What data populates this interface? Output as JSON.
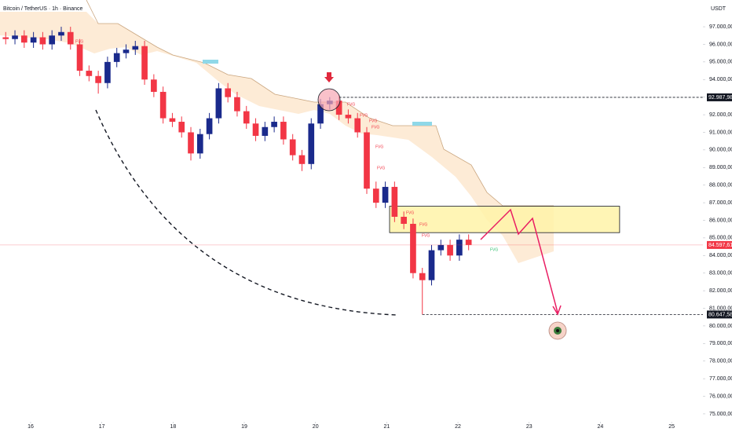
{
  "chart_data": {
    "type": "candlestick",
    "title": "Bitcoin / TetherUS · 1h · Binance",
    "y_axis_label": "USDT",
    "annotation": "FVG",
    "up_color": "#1a2a8c",
    "down_color": "#f23645",
    "x": [
      15.65,
      15.78,
      15.91,
      16.04,
      16.17,
      16.3,
      16.43,
      16.56,
      16.69,
      16.82,
      16.95,
      17.08,
      17.21,
      17.34,
      17.47,
      17.6,
      17.73,
      17.86,
      17.99,
      18.12,
      18.25,
      18.38,
      18.51,
      18.64,
      18.77,
      18.9,
      19.03,
      19.16,
      19.29,
      19.42,
      19.55,
      19.68,
      19.81,
      19.94,
      20.07,
      20.2,
      20.33,
      20.46,
      20.59,
      20.72,
      20.85,
      20.98,
      21.11,
      21.24,
      21.37,
      21.5,
      21.63,
      21.76,
      21.89,
      22.02,
      22.15
    ],
    "open": [
      96400,
      96300,
      96500,
      96100,
      96400,
      96000,
      96500,
      96700,
      96000,
      94500,
      94200,
      93800,
      95000,
      95500,
      95700,
      95900,
      94000,
      93300,
      91800,
      91600,
      91000,
      89800,
      90900,
      91800,
      93500,
      93000,
      92200,
      91500,
      90800,
      91300,
      91600,
      90600,
      89700,
      89200,
      91500,
      92600,
      92800,
      92000,
      91800,
      91000,
      87800,
      87000,
      87900,
      86200,
      85800,
      83000,
      82600,
      84300,
      84600,
      84000,
      84900
    ],
    "high": [
      96700,
      96800,
      96800,
      96700,
      96700,
      96800,
      97000,
      97000,
      96300,
      94800,
      94500,
      95300,
      95800,
      96000,
      96200,
      96200,
      94300,
      93600,
      92100,
      91900,
      91300,
      91200,
      92100,
      93800,
      93800,
      93300,
      92500,
      91800,
      91600,
      91900,
      91900,
      90900,
      90000,
      91800,
      92900,
      93000,
      93100,
      92300,
      92100,
      91300,
      88200,
      88200,
      88200,
      86500,
      86100,
      83300,
      84600,
      84900,
      84900,
      85200,
      85200
    ],
    "low": [
      96000,
      96000,
      95800,
      95800,
      95700,
      95700,
      96200,
      95700,
      94200,
      93900,
      93200,
      93500,
      94700,
      95200,
      95400,
      93700,
      93000,
      91500,
      91300,
      90700,
      89400,
      89500,
      90600,
      91500,
      92700,
      91900,
      91200,
      90500,
      90500,
      91000,
      90300,
      89400,
      88800,
      88900,
      91200,
      92300,
      91700,
      91500,
      90700,
      87500,
      86700,
      86700,
      85900,
      85500,
      82700,
      80647.58,
      82300,
      84000,
      83700,
      83700,
      84300
    ],
    "close": [
      96300,
      96500,
      96100,
      96400,
      96000,
      96500,
      96700,
      96000,
      94500,
      94200,
      93800,
      95000,
      95500,
      95700,
      95900,
      94000,
      93300,
      91800,
      91600,
      91000,
      89800,
      90900,
      91800,
      93500,
      93000,
      92200,
      91500,
      90800,
      91300,
      91600,
      90600,
      89700,
      89200,
      91500,
      92600,
      92800,
      92000,
      91800,
      91000,
      87800,
      87000,
      87900,
      86200,
      85800,
      83000,
      82600,
      84300,
      84600,
      84000,
      84900,
      84600
    ],
    "xlim": [
      15.57,
      25.44
    ],
    "xticks": [
      16,
      17,
      18,
      19,
      20,
      21,
      22,
      23,
      24,
      25
    ],
    "ylim": [
      74640,
      98520
    ],
    "yticks": [
      {
        "value": 75000,
        "label": "75.000,00"
      },
      {
        "value": 76000,
        "label": "76.000,00"
      },
      {
        "value": 77000,
        "label": "77.000,00"
      },
      {
        "value": 78000,
        "label": "78.000,00"
      },
      {
        "value": 79000,
        "label": "79.000,00"
      },
      {
        "value": 80000,
        "label": "80.000,00"
      },
      {
        "value": 81000,
        "label": "81.000,00"
      },
      {
        "value": 82000,
        "label": "82.000,00"
      },
      {
        "value": 83000,
        "label": "83.000,00"
      },
      {
        "value": 84000,
        "label": "84.000,00"
      },
      {
        "value": 85000,
        "label": "85.000,00"
      },
      {
        "value": 86000,
        "label": "86.000,00"
      },
      {
        "value": 87000,
        "label": "87.000,00"
      },
      {
        "value": 88000,
        "label": "88.000,00"
      },
      {
        "value": 89000,
        "label": "89.000,00"
      },
      {
        "value": 90000,
        "label": "90.000,00"
      },
      {
        "value": 91000,
        "label": "91.000,00"
      },
      {
        "value": 92000,
        "label": "92.000,00"
      },
      {
        "value": 93000,
        "label": "93.000,00"
      },
      {
        "value": 94000,
        "label": "94.000,00"
      },
      {
        "value": 95000,
        "label": "95.000,00"
      },
      {
        "value": 96000,
        "label": "96.000,00"
      },
      {
        "value": 97000,
        "label": "97.000,00"
      }
    ],
    "price_labels": [
      {
        "value": 92987.98,
        "label": "92.987,98",
        "color": "#131722"
      },
      {
        "value": 84597.61,
        "label": "84.597,61",
        "color": "#f23645"
      },
      {
        "value": 80647.58,
        "label": "80.647,58",
        "color": "#131722"
      }
    ],
    "zone": {
      "start": 21.04,
      "end": 24.27,
      "top": 86800,
      "bottom": 85300,
      "color": "#fff3a8"
    }
  }
}
